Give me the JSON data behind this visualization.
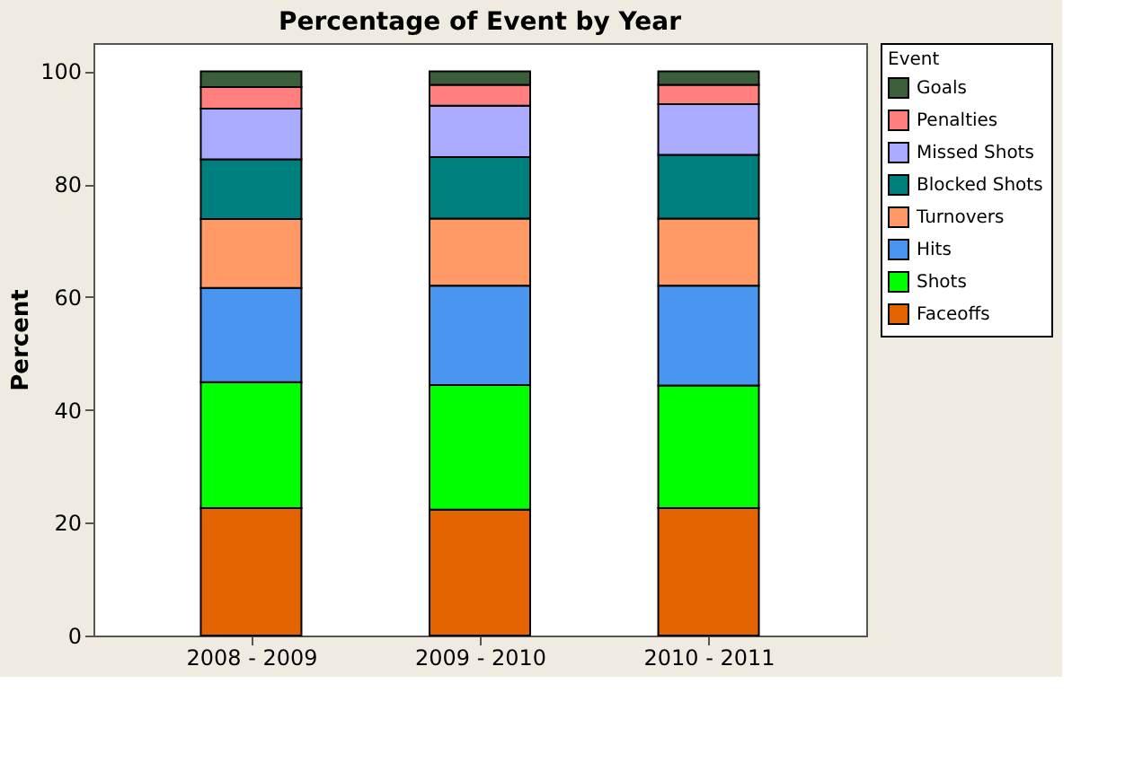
{
  "chart_data": {
    "type": "bar",
    "title": "Percentage of Event by Year",
    "ylabel": "Percent",
    "legend_title": "Event",
    "categories": [
      "2008 - 2009",
      "2009 - 2010",
      "2010 - 2011"
    ],
    "stacked": true,
    "legend": "top right",
    "grid": false,
    "ylim": [
      0,
      105
    ],
    "yticks": [
      0,
      20,
      40,
      60,
      80,
      100
    ],
    "series": [
      {
        "name": "Faceoffs",
        "color": "#e36400",
        "values": [
          22.6,
          22.3,
          22.6
        ]
      },
      {
        "name": "Shots",
        "color": "#00ff00",
        "values": [
          22.3,
          22.1,
          21.7
        ]
      },
      {
        "name": "Hits",
        "color": "#4a95f0",
        "values": [
          16.7,
          17.6,
          17.7
        ]
      },
      {
        "name": "Turnovers",
        "color": "#ff9966",
        "values": [
          12.2,
          11.9,
          11.9
        ]
      },
      {
        "name": "Blocked Shots",
        "color": "#007f7f",
        "values": [
          10.6,
          10.9,
          11.3
        ]
      },
      {
        "name": "Missed Shots",
        "color": "#aaaaff",
        "values": [
          9.0,
          9.1,
          9.0
        ]
      },
      {
        "name": "Penalties",
        "color": "#ff7f7f",
        "values": [
          3.8,
          3.7,
          3.4
        ]
      },
      {
        "name": "Goals",
        "color": "#3a5f3a",
        "values": [
          2.8,
          2.4,
          2.4
        ]
      }
    ]
  }
}
